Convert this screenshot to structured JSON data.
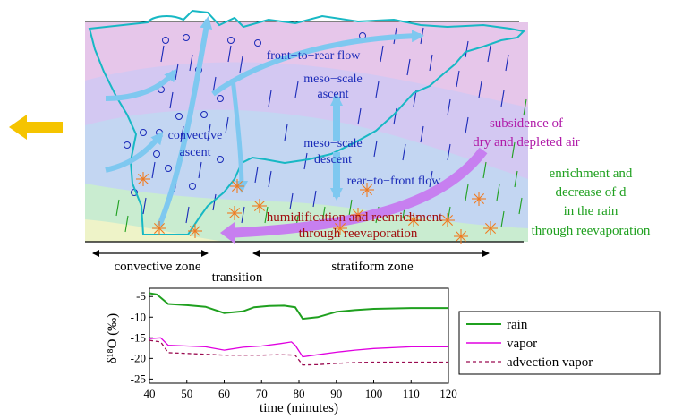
{
  "diagram": {
    "labels": {
      "front_to_rear": "front−to−rear flow",
      "meso_ascent_1": "meso−scale",
      "meso_ascent_2": "ascent",
      "convective_1": "convective",
      "convective_2": "ascent",
      "meso_descent_1": "meso−scale",
      "meso_descent_2": "descent",
      "rear_to_front": "rear−to−front flow",
      "subsidence_1": "subsidence of",
      "subsidence_2": "dry and depleted air",
      "enrich_1": "enrichment and",
      "enrich_2": "decrease of d",
      "enrich_3": "in the rain",
      "enrich_4": "through reevaporation",
      "humid_1": "humidification and reenrichment",
      "humid_2": "through reevaporation"
    },
    "zones": {
      "convective": "convective zone",
      "transition": "transition",
      "stratiform": "stratiform zone"
    },
    "colors": {
      "cloud_outline": "#17b8c4",
      "updraft": "#7ec8f0",
      "label_blue": "#1a2ab8",
      "label_purple": "#b01aa8",
      "label_green": "#1fa01f",
      "label_red": "#a01010",
      "arrow_violet": "#c77ff0",
      "arrow_yellow": "#f5c400",
      "burst": "#f07a20"
    }
  },
  "chart_data": {
    "type": "line",
    "xlabel": "time (minutes)",
    "ylabel": "δ¹⁸O (‰)",
    "xlim": [
      40,
      120
    ],
    "ylim": [
      -26,
      -3
    ],
    "xticks": [
      "40",
      "50",
      "60",
      "70",
      "80",
      "90",
      "100",
      "110",
      "120"
    ],
    "yticks": [
      "-5",
      "-10",
      "-15",
      "-20",
      "-25"
    ],
    "series": [
      {
        "name": "rain",
        "color": "#1fa01f",
        "dash": "",
        "x": [
          40,
          42,
          45,
          50,
          55,
          60,
          65,
          68,
          72,
          76,
          79,
          81,
          85,
          90,
          95,
          100,
          110,
          120
        ],
        "y": [
          -4.2,
          -4.5,
          -6.8,
          -7.1,
          -7.5,
          -9.0,
          -8.6,
          -7.6,
          -7.3,
          -7.2,
          -7.6,
          -10.4,
          -10.0,
          -8.7,
          -8.3,
          -8.0,
          -7.8,
          -7.8
        ]
      },
      {
        "name": "vapor",
        "color": "#e000e0",
        "dash": "",
        "x": [
          40,
          43,
          45,
          50,
          55,
          60,
          65,
          70,
          75,
          78,
          79,
          81,
          85,
          90,
          95,
          100,
          110,
          120
        ],
        "y": [
          -15.2,
          -15.0,
          -16.8,
          -17.0,
          -17.2,
          -18.0,
          -17.3,
          -17.0,
          -16.4,
          -16.0,
          -16.8,
          -19.6,
          -19.1,
          -18.5,
          -18.0,
          -17.6,
          -17.2,
          -17.2
        ]
      },
      {
        "name": "advection vapor",
        "color": "#9a0a50",
        "dash": "4,3",
        "x": [
          40,
          43,
          45,
          50,
          55,
          60,
          65,
          70,
          75,
          79,
          81,
          85,
          90,
          95,
          100,
          110,
          120
        ],
        "y": [
          -15.6,
          -16.0,
          -18.6,
          -18.8,
          -19.0,
          -19.2,
          -19.2,
          -19.2,
          -19.1,
          -19.2,
          -21.6,
          -21.5,
          -21.2,
          -21.0,
          -20.9,
          -20.9,
          -20.9
        ]
      }
    ],
    "legend": {
      "placement": "right",
      "entries": [
        "rain",
        "vapor",
        "advection vapor"
      ]
    },
    "annotation": {
      "type": "dashed-diagonal",
      "x": [
        66,
        79
      ],
      "y": [
        -3,
        -5.5
      ]
    }
  }
}
